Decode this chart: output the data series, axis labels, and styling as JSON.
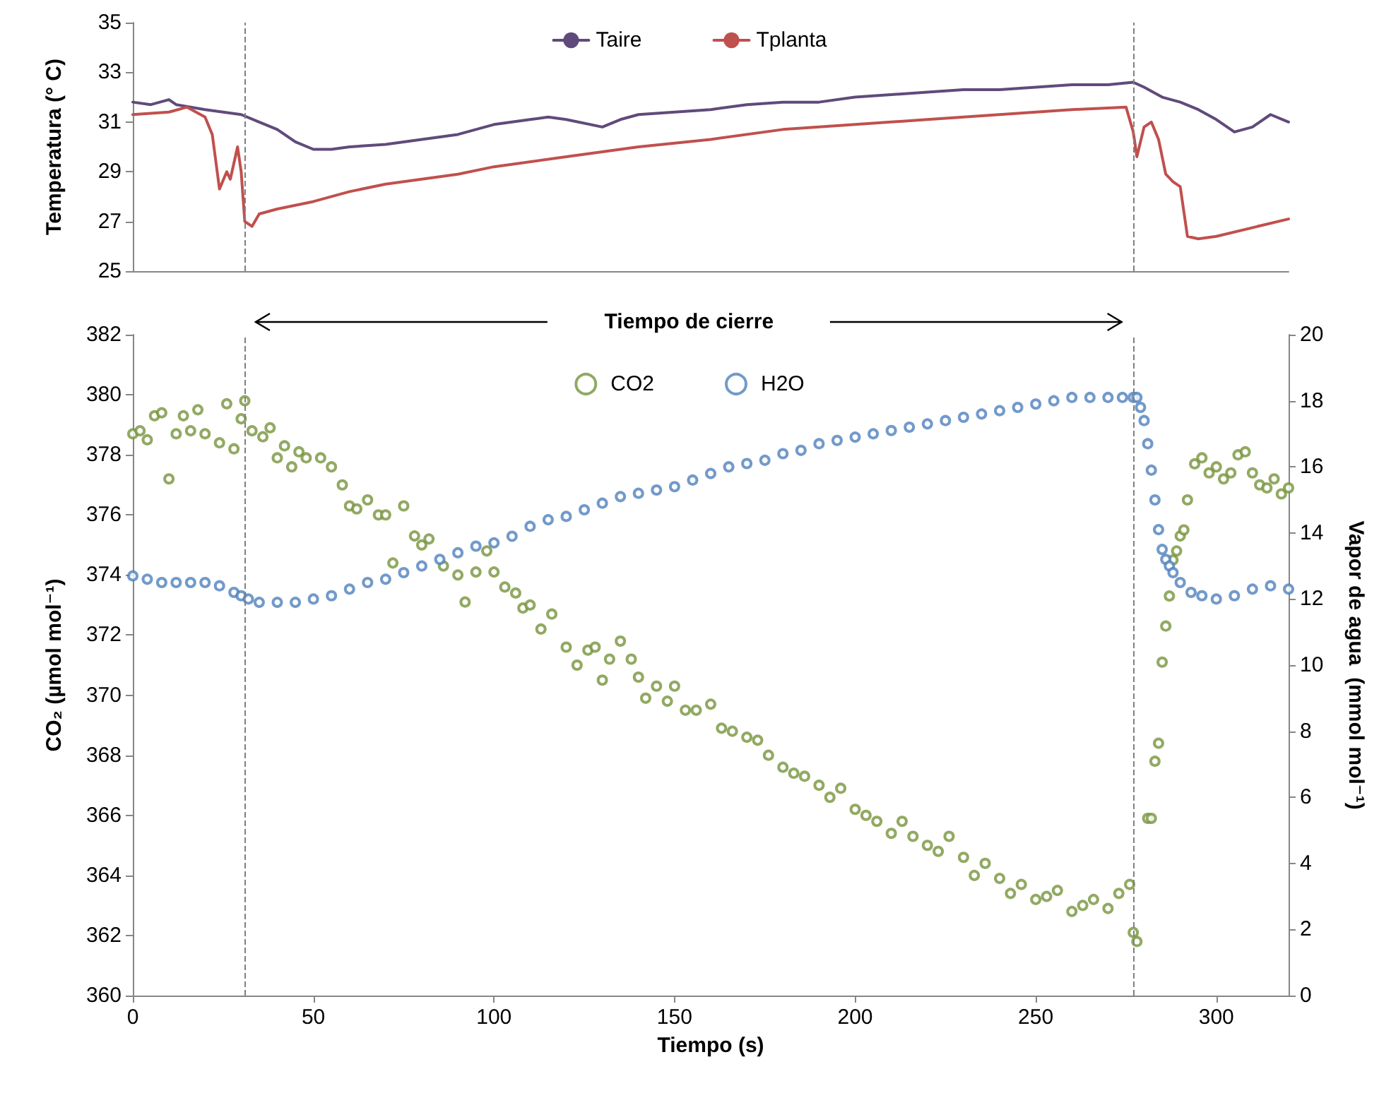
{
  "chart_data": [
    {
      "type": "line",
      "ylabel": "Temperatura (° C)",
      "xlim": [
        0,
        320
      ],
      "ylim": [
        25,
        35
      ],
      "yticks": [
        25,
        27,
        29,
        31,
        33,
        35
      ],
      "tick_labels": "y",
      "legend": "top",
      "grid": false,
      "marker": "none",
      "line_style": "solid",
      "series": [
        {
          "name": "Taire",
          "color": "#604a7b",
          "x": [
            0,
            5,
            10,
            12,
            20,
            25,
            30,
            35,
            40,
            45,
            50,
            55,
            60,
            70,
            80,
            90,
            100,
            110,
            115,
            120,
            130,
            135,
            140,
            150,
            160,
            170,
            180,
            190,
            200,
            210,
            220,
            230,
            240,
            250,
            260,
            270,
            277,
            280,
            285,
            290,
            295,
            300,
            305,
            310,
            315,
            320
          ],
          "values": [
            31.8,
            31.7,
            31.9,
            31.7,
            31.5,
            31.4,
            31.3,
            31.0,
            30.7,
            30.2,
            29.9,
            29.9,
            30.0,
            30.1,
            30.3,
            30.5,
            30.9,
            31.1,
            31.2,
            31.1,
            30.8,
            31.1,
            31.3,
            31.4,
            31.5,
            31.7,
            31.8,
            31.8,
            32.0,
            32.1,
            32.2,
            32.3,
            32.3,
            32.4,
            32.5,
            32.5,
            32.6,
            32.4,
            32.0,
            31.8,
            31.5,
            31.1,
            30.6,
            30.8,
            31.3,
            31.0
          ]
        },
        {
          "name": "Tplanta",
          "color": "#c0504d",
          "x": [
            0,
            10,
            15,
            20,
            22,
            24,
            26,
            27,
            29,
            30,
            31,
            33,
            35,
            40,
            50,
            60,
            70,
            80,
            90,
            100,
            120,
            140,
            160,
            180,
            200,
            220,
            240,
            260,
            275,
            277,
            278,
            280,
            282,
            284,
            286,
            288,
            290,
            292,
            295,
            300,
            320
          ],
          "values": [
            31.3,
            31.4,
            31.6,
            31.2,
            30.5,
            28.3,
            29.0,
            28.7,
            30.0,
            29.0,
            27.0,
            26.8,
            27.3,
            27.5,
            27.8,
            28.2,
            28.5,
            28.7,
            28.9,
            29.2,
            29.6,
            30.0,
            30.3,
            30.7,
            30.9,
            31.1,
            31.3,
            31.5,
            31.6,
            30.6,
            29.6,
            30.8,
            31.0,
            30.3,
            28.9,
            28.6,
            28.4,
            26.4,
            26.3,
            26.4,
            27.1
          ]
        }
      ],
      "ref_lines": [
        {
          "axis": "x",
          "value": 31,
          "color": "#808080",
          "line_style": "dashed"
        },
        {
          "axis": "x",
          "value": 277,
          "color": "#808080",
          "line_style": "dashed"
        }
      ]
    },
    {
      "type": "scatter",
      "xlabel": "Tiempo (s)",
      "ylabel": "CO₂ (µmol mol⁻¹)",
      "y2label": "Vapor de agua  (mmol mol⁻¹)",
      "xlim": [
        0,
        320
      ],
      "xticks": [
        0,
        50,
        100,
        150,
        200,
        250,
        300
      ],
      "ylim": [
        360,
        382
      ],
      "yticks": [
        360,
        362,
        364,
        366,
        368,
        370,
        372,
        374,
        376,
        378,
        380,
        382
      ],
      "y2lim": [
        0,
        20
      ],
      "y2ticks": [
        0,
        2,
        4,
        6,
        8,
        10,
        12,
        14,
        16,
        18,
        20
      ],
      "legend": "top",
      "grid": false,
      "marker": "circle",
      "annotations": [
        "Tiempo de cierre"
      ],
      "series": [
        {
          "name": "CO2",
          "color": "#77933c",
          "x": [
            0,
            2,
            4,
            6,
            8,
            10,
            12,
            14,
            16,
            18,
            20,
            24,
            26,
            28,
            30,
            31,
            33,
            36,
            38,
            40,
            42,
            44,
            46,
            48,
            52,
            55,
            58,
            60,
            62,
            65,
            68,
            70,
            72,
            75,
            78,
            80,
            82,
            86,
            90,
            92,
            95,
            98,
            100,
            103,
            106,
            108,
            110,
            113,
            116,
            120,
            123,
            126,
            128,
            130,
            132,
            135,
            138,
            140,
            142,
            145,
            148,
            150,
            153,
            156,
            160,
            163,
            166,
            170,
            173,
            176,
            180,
            183,
            186,
            190,
            193,
            196,
            200,
            203,
            206,
            210,
            213,
            216,
            220,
            223,
            226,
            230,
            233,
            236,
            240,
            243,
            246,
            250,
            253,
            256,
            260,
            263,
            266,
            270,
            273,
            276,
            277,
            278,
            281,
            282,
            283,
            284,
            285,
            286,
            287,
            288,
            289,
            290,
            291,
            292,
            294,
            296,
            298,
            300,
            302,
            304,
            306,
            308,
            310,
            312,
            314,
            316,
            318,
            320
          ],
          "values": [
            378.7,
            378.8,
            378.5,
            379.3,
            379.4,
            377.2,
            378.7,
            379.3,
            378.8,
            379.5,
            378.7,
            378.4,
            379.7,
            378.2,
            379.2,
            379.8,
            378.8,
            378.6,
            378.9,
            377.9,
            378.3,
            377.6,
            378.1,
            377.9,
            377.9,
            377.6,
            377.0,
            376.3,
            376.2,
            376.5,
            376.0,
            376.0,
            374.4,
            376.3,
            375.3,
            375.0,
            375.2,
            374.3,
            374.0,
            373.1,
            374.1,
            374.8,
            374.1,
            373.6,
            373.4,
            372.9,
            373.0,
            372.2,
            372.7,
            371.6,
            371.0,
            371.5,
            371.6,
            370.5,
            371.2,
            371.8,
            371.2,
            370.6,
            369.9,
            370.3,
            369.8,
            370.3,
            369.5,
            369.5,
            369.7,
            368.9,
            368.8,
            368.6,
            368.5,
            368.0,
            367.6,
            367.4,
            367.3,
            367.0,
            366.6,
            366.9,
            366.2,
            366.0,
            365.8,
            365.4,
            365.8,
            365.3,
            365.0,
            364.8,
            365.3,
            364.6,
            364.0,
            364.4,
            363.9,
            363.4,
            363.7,
            363.2,
            363.3,
            363.5,
            362.8,
            363.0,
            363.2,
            362.9,
            363.4,
            363.7,
            362.1,
            361.8,
            365.9,
            365.9,
            367.8,
            368.4,
            371.1,
            372.3,
            373.3,
            374.5,
            374.8,
            375.3,
            375.5,
            376.5,
            377.7,
            377.9,
            377.4,
            377.6,
            377.2,
            377.4,
            378.0,
            378.1,
            377.4,
            377.0,
            376.9,
            377.2,
            376.7,
            376.9
          ]
        },
        {
          "name": "H2O",
          "color": "#4f81bd",
          "axis": "y2",
          "x": [
            0,
            4,
            8,
            12,
            16,
            20,
            24,
            28,
            30,
            32,
            35,
            40,
            45,
            50,
            55,
            60,
            65,
            70,
            75,
            80,
            85,
            90,
            95,
            100,
            105,
            110,
            115,
            120,
            125,
            130,
            135,
            140,
            145,
            150,
            155,
            160,
            165,
            170,
            175,
            180,
            185,
            190,
            195,
            200,
            205,
            210,
            215,
            220,
            225,
            230,
            235,
            240,
            245,
            250,
            255,
            260,
            265,
            270,
            274,
            277,
            278,
            279,
            280,
            281,
            282,
            283,
            284,
            285,
            286,
            287,
            288,
            290,
            293,
            296,
            300,
            305,
            310,
            315,
            320
          ],
          "values": [
            12.7,
            12.6,
            12.5,
            12.5,
            12.5,
            12.5,
            12.4,
            12.2,
            12.1,
            12.0,
            11.9,
            11.9,
            11.9,
            12.0,
            12.1,
            12.3,
            12.5,
            12.6,
            12.8,
            13.0,
            13.2,
            13.4,
            13.6,
            13.7,
            13.9,
            14.2,
            14.4,
            14.5,
            14.7,
            14.9,
            15.1,
            15.2,
            15.3,
            15.4,
            15.6,
            15.8,
            16.0,
            16.1,
            16.2,
            16.4,
            16.5,
            16.7,
            16.8,
            16.9,
            17.0,
            17.1,
            17.2,
            17.3,
            17.4,
            17.5,
            17.6,
            17.7,
            17.8,
            17.9,
            18.0,
            18.1,
            18.1,
            18.1,
            18.1,
            18.1,
            18.1,
            17.8,
            17.4,
            16.7,
            15.9,
            15.0,
            14.1,
            13.5,
            13.2,
            13.0,
            12.8,
            12.5,
            12.2,
            12.1,
            12.0,
            12.1,
            12.3,
            12.4,
            12.3
          ]
        }
      ],
      "ref_lines": [
        {
          "axis": "x",
          "value": 31,
          "color": "#808080",
          "line_style": "dashed"
        },
        {
          "axis": "x",
          "value": 277,
          "color": "#808080",
          "line_style": "dashed"
        }
      ]
    }
  ]
}
